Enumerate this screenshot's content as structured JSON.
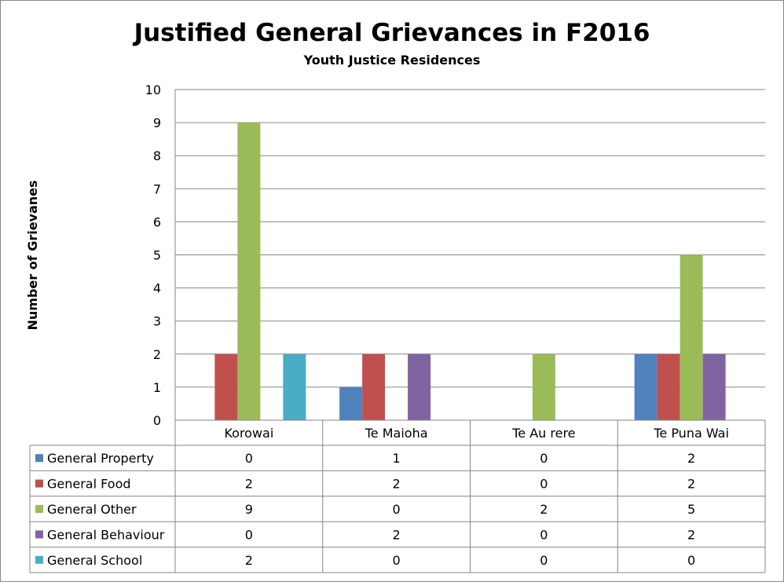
{
  "chart_data": {
    "type": "bar",
    "title": "Justified General Grievances in F2016",
    "subtitle": "Youth Justice Residences",
    "xlabel": "",
    "ylabel": "Number of Grievanes",
    "ylim": [
      0,
      10
    ],
    "yticks": [
      0,
      1,
      2,
      3,
      4,
      5,
      6,
      7,
      8,
      9,
      10
    ],
    "grid": true,
    "legend": "data-table-left",
    "categories": [
      "Korowai",
      "Te Maioha",
      "Te Au rere",
      "Te Puna Wai"
    ],
    "series": [
      {
        "name": "General Property",
        "color": "#4F81BD",
        "values": [
          0,
          1,
          0,
          2
        ]
      },
      {
        "name": "General Food",
        "color": "#C0504D",
        "values": [
          2,
          2,
          0,
          2
        ]
      },
      {
        "name": "General Other",
        "color": "#9BBB59",
        "values": [
          9,
          0,
          2,
          5
        ]
      },
      {
        "name": "General Behaviour",
        "color": "#8064A2",
        "values": [
          0,
          2,
          0,
          2
        ]
      },
      {
        "name": "General School",
        "color": "#4BACC6",
        "values": [
          2,
          0,
          0,
          0
        ]
      }
    ]
  }
}
